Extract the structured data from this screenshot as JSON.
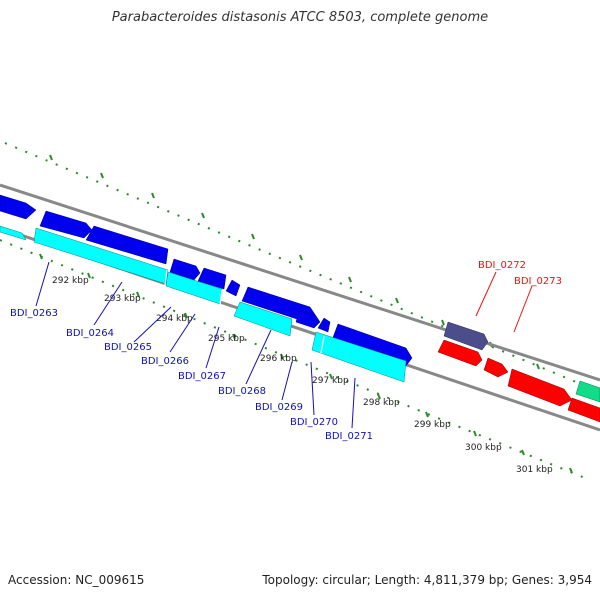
{
  "title": "Parabacteroides distasonis ATCC 8503, complete genome",
  "accession": "Accession: NC_009615",
  "summary": "Topology: circular; Length: 4,811,379 bp; Genes: 3,954",
  "colors": {
    "forward_cds": "#0000ee",
    "reverse_cds": "#00ffff",
    "forward_other": "#4b4e8a",
    "reverse_other": "#ff0000",
    "green_gene": "#11dd88",
    "backbone": "#888888",
    "ticks": "#2a8a2a",
    "label_blue": "#1010bb",
    "label_red": "#ee1111"
  },
  "tick_labels": [
    "292 kbp",
    "293 kbp",
    "294 kbp",
    "295 kbp",
    "296 kbp",
    "297 kbp",
    "298 kbp",
    "299 kbp",
    "300 kbp",
    "301 kbp"
  ],
  "gene_labels": [
    "BDI_0263",
    "BDI_0264",
    "BDI_0265",
    "BDI_0266",
    "BDI_0267",
    "BDI_0268",
    "BDI_0269",
    "BDI_0270",
    "BDI_0271",
    "BDI_0272",
    "BDI_0273"
  ]
}
